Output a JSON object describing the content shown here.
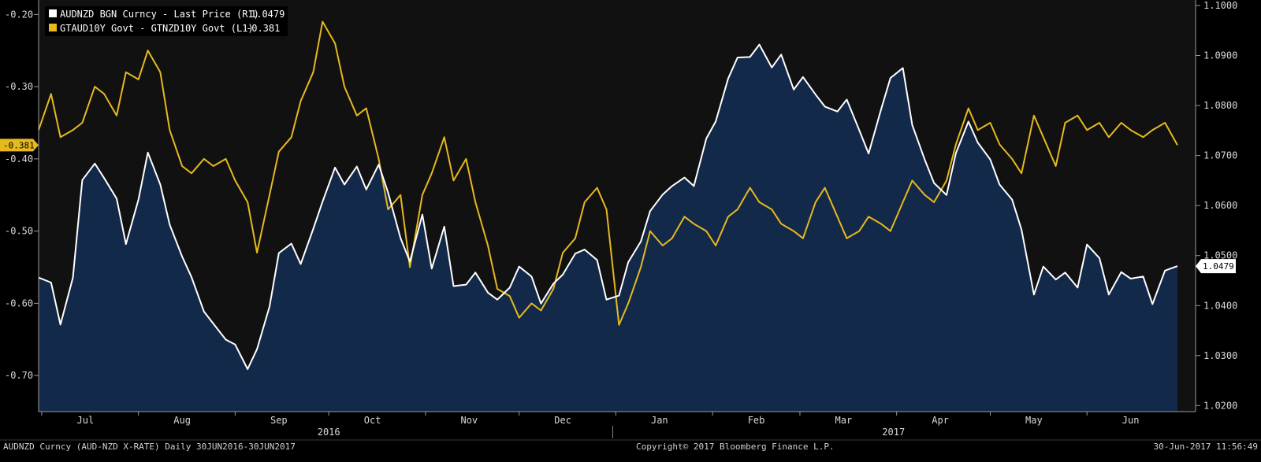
{
  "chart_data": {
    "type": "line",
    "title": "",
    "legend": [
      {
        "name": "AUDNZD BGN Curncy - Last Price (R1)",
        "last": "1.0479",
        "color": "#ffffff"
      },
      {
        "name": "GTAUD10Y Govt - GTNZD10Y Govt (L1)",
        "last": "-0.381",
        "color": "#e6b91e"
      }
    ],
    "left_axis": {
      "ylim": [
        -0.75,
        -0.18
      ],
      "ticks": [
        "-0.20",
        "-0.30",
        "-0.40",
        "-0.50",
        "-0.60",
        "-0.70"
      ],
      "tick_values": [
        -0.2,
        -0.3,
        -0.4,
        -0.5,
        -0.6,
        -0.7
      ]
    },
    "right_axis": {
      "ylim": [
        1.0188,
        1.1011
      ],
      "ticks": [
        "1.1000",
        "1.0900",
        "1.0800",
        "1.0700",
        "1.0600",
        "1.0500",
        "1.0400",
        "1.0300",
        "1.0200"
      ],
      "tick_values": [
        1.1,
        1.09,
        1.08,
        1.07,
        1.06,
        1.05,
        1.04,
        1.03,
        1.02
      ]
    },
    "x_range": [
      "2016-06-30",
      "2017-06-30"
    ],
    "months": [
      {
        "label": "Jul",
        "date": "2016-07-15"
      },
      {
        "label": "Aug",
        "date": "2016-08-15"
      },
      {
        "label": "Sep",
        "date": "2016-09-15"
      },
      {
        "label": "Oct",
        "date": "2016-10-15"
      },
      {
        "label": "Nov",
        "date": "2016-11-15"
      },
      {
        "label": "Dec",
        "date": "2016-12-15"
      },
      {
        "label": "Jan",
        "date": "2017-01-15"
      },
      {
        "label": "Feb",
        "date": "2017-02-15"
      },
      {
        "label": "Mar",
        "date": "2017-03-15"
      },
      {
        "label": "Apr",
        "date": "2017-04-15"
      },
      {
        "label": "May",
        "date": "2017-05-15"
      },
      {
        "label": "Jun",
        "date": "2017-06-15"
      }
    ],
    "years": [
      {
        "label": "2016",
        "date": "2016-10-01"
      },
      {
        "label": "2017",
        "date": "2017-03-31"
      }
    ],
    "year_divider": "2016-12-31",
    "series": [
      {
        "name": "AUDNZD BGN Curncy - Last Price (R1)",
        "axis": "right",
        "color": "#ffffff",
        "fill": "#13294a",
        "x": [
          "2016-06-30",
          "2016-07-04",
          "2016-07-07",
          "2016-07-11",
          "2016-07-14",
          "2016-07-18",
          "2016-07-21",
          "2016-07-25",
          "2016-07-28",
          "2016-08-01",
          "2016-08-04",
          "2016-08-08",
          "2016-08-11",
          "2016-08-15",
          "2016-08-18",
          "2016-08-22",
          "2016-08-25",
          "2016-08-29",
          "2016-09-01",
          "2016-09-05",
          "2016-09-08",
          "2016-09-12",
          "2016-09-15",
          "2016-09-19",
          "2016-09-22",
          "2016-09-26",
          "2016-09-29",
          "2016-10-03",
          "2016-10-06",
          "2016-10-10",
          "2016-10-13",
          "2016-10-17",
          "2016-10-20",
          "2016-10-24",
          "2016-10-27",
          "2016-10-31",
          "2016-11-03",
          "2016-11-07",
          "2016-11-10",
          "2016-11-14",
          "2016-11-17",
          "2016-11-21",
          "2016-11-24",
          "2016-11-28",
          "2016-12-01",
          "2016-12-05",
          "2016-12-08",
          "2016-12-12",
          "2016-12-15",
          "2016-12-19",
          "2016-12-22",
          "2016-12-26",
          "2016-12-29",
          "2017-01-02",
          "2017-01-05",
          "2017-01-09",
          "2017-01-12",
          "2017-01-16",
          "2017-01-19",
          "2017-01-23",
          "2017-01-26",
          "2017-01-30",
          "2017-02-02",
          "2017-02-06",
          "2017-02-09",
          "2017-02-13",
          "2017-02-16",
          "2017-02-20",
          "2017-02-23",
          "2017-02-27",
          "2017-03-02",
          "2017-03-06",
          "2017-03-09",
          "2017-03-13",
          "2017-03-16",
          "2017-03-20",
          "2017-03-23",
          "2017-03-27",
          "2017-03-30",
          "2017-04-03",
          "2017-04-06",
          "2017-04-10",
          "2017-04-13",
          "2017-04-17",
          "2017-04-20",
          "2017-04-24",
          "2017-04-27",
          "2017-05-01",
          "2017-05-04",
          "2017-05-08",
          "2017-05-11",
          "2017-05-15",
          "2017-05-18",
          "2017-05-22",
          "2017-05-25",
          "2017-05-29",
          "2017-06-01",
          "2017-06-05",
          "2017-06-08",
          "2017-06-12",
          "2017-06-15",
          "2017-06-19",
          "2017-06-22",
          "2017-06-26",
          "2017-06-30"
        ],
        "values": [
          1.0456,
          1.0446,
          1.0362,
          1.0456,
          1.0651,
          1.0684,
          1.0655,
          1.0614,
          1.0523,
          1.0612,
          1.0706,
          1.0642,
          1.0562,
          1.0498,
          1.0457,
          1.0388,
          1.0364,
          1.0332,
          1.0322,
          1.0273,
          1.0313,
          1.0398,
          1.0505,
          1.0524,
          1.0483,
          1.0553,
          1.0608,
          1.0676,
          1.0642,
          1.0678,
          1.0632,
          1.0682,
          1.0626,
          1.0535,
          1.0488,
          1.0582,
          1.0474,
          1.0558,
          1.0439,
          1.0442,
          1.0466,
          1.0426,
          1.0412,
          1.0436,
          1.0478,
          1.0458,
          1.0404,
          1.0444,
          1.0462,
          1.0504,
          1.0512,
          1.0491,
          1.0412,
          1.042,
          1.0487,
          1.0528,
          1.0589,
          1.0622,
          1.0639,
          1.0656,
          1.0639,
          1.0734,
          1.0768,
          1.0854,
          1.0896,
          1.0897,
          1.0922,
          1.0876,
          1.0902,
          1.0832,
          1.0857,
          1.0822,
          1.0798,
          1.0788,
          1.0812,
          1.0751,
          1.0704,
          1.0792,
          1.0855,
          1.0875,
          1.0761,
          1.0692,
          1.0645,
          1.0621,
          1.0705,
          1.0768,
          1.0726,
          1.0692,
          1.0642,
          1.0612,
          1.0552,
          1.0422,
          1.0478,
          1.0452,
          1.0466,
          1.0436,
          1.0522,
          1.0495,
          1.0422,
          1.0467,
          1.0454,
          1.0458,
          1.0403,
          1.047,
          1.0479
        ]
      },
      {
        "name": "GTAUD10Y Govt - GTNZD10Y Govt (L1)",
        "axis": "left",
        "color": "#e6b91e",
        "x": [
          "2016-06-30",
          "2016-07-04",
          "2016-07-07",
          "2016-07-11",
          "2016-07-14",
          "2016-07-18",
          "2016-07-21",
          "2016-07-25",
          "2016-07-28",
          "2016-08-01",
          "2016-08-04",
          "2016-08-08",
          "2016-08-11",
          "2016-08-15",
          "2016-08-18",
          "2016-08-22",
          "2016-08-25",
          "2016-08-29",
          "2016-09-01",
          "2016-09-05",
          "2016-09-08",
          "2016-09-12",
          "2016-09-15",
          "2016-09-19",
          "2016-09-22",
          "2016-09-26",
          "2016-09-29",
          "2016-10-03",
          "2016-10-06",
          "2016-10-10",
          "2016-10-13",
          "2016-10-17",
          "2016-10-20",
          "2016-10-24",
          "2016-10-27",
          "2016-10-31",
          "2016-11-03",
          "2016-11-07",
          "2016-11-10",
          "2016-11-14",
          "2016-11-17",
          "2016-11-21",
          "2016-11-24",
          "2016-11-28",
          "2016-12-01",
          "2016-12-05",
          "2016-12-08",
          "2016-12-12",
          "2016-12-15",
          "2016-12-19",
          "2016-12-22",
          "2016-12-26",
          "2016-12-29",
          "2017-01-02",
          "2017-01-05",
          "2017-01-09",
          "2017-01-12",
          "2017-01-16",
          "2017-01-19",
          "2017-01-23",
          "2017-01-26",
          "2017-01-30",
          "2017-02-02",
          "2017-02-06",
          "2017-02-09",
          "2017-02-13",
          "2017-02-16",
          "2017-02-20",
          "2017-02-23",
          "2017-02-27",
          "2017-03-02",
          "2017-03-06",
          "2017-03-09",
          "2017-03-13",
          "2017-03-16",
          "2017-03-20",
          "2017-03-23",
          "2017-03-27",
          "2017-03-30",
          "2017-04-03",
          "2017-04-06",
          "2017-04-10",
          "2017-04-13",
          "2017-04-17",
          "2017-04-20",
          "2017-04-24",
          "2017-04-27",
          "2017-05-01",
          "2017-05-04",
          "2017-05-08",
          "2017-05-11",
          "2017-05-15",
          "2017-05-18",
          "2017-05-22",
          "2017-05-25",
          "2017-05-29",
          "2017-06-01",
          "2017-06-05",
          "2017-06-08",
          "2017-06-12",
          "2017-06-15",
          "2017-06-19",
          "2017-06-22",
          "2017-06-26",
          "2017-06-30"
        ],
        "values": [
          -0.36,
          -0.31,
          -0.37,
          -0.36,
          -0.35,
          -0.3,
          -0.31,
          -0.34,
          -0.28,
          -0.29,
          -0.25,
          -0.28,
          -0.36,
          -0.41,
          -0.42,
          -0.4,
          -0.41,
          -0.4,
          -0.43,
          -0.46,
          -0.53,
          -0.45,
          -0.39,
          -0.37,
          -0.32,
          -0.28,
          -0.21,
          -0.24,
          -0.3,
          -0.34,
          -0.33,
          -0.4,
          -0.47,
          -0.45,
          -0.55,
          -0.45,
          -0.42,
          -0.37,
          -0.43,
          -0.4,
          -0.46,
          -0.52,
          -0.58,
          -0.59,
          -0.62,
          -0.6,
          -0.61,
          -0.58,
          -0.53,
          -0.51,
          -0.46,
          -0.44,
          -0.47,
          -0.63,
          -0.6,
          -0.55,
          -0.5,
          -0.52,
          -0.51,
          -0.48,
          -0.49,
          -0.5,
          -0.52,
          -0.48,
          -0.47,
          -0.44,
          -0.46,
          -0.47,
          -0.49,
          -0.5,
          -0.51,
          -0.46,
          -0.44,
          -0.48,
          -0.51,
          -0.5,
          -0.48,
          -0.49,
          -0.5,
          -0.46,
          -0.43,
          -0.45,
          -0.46,
          -0.43,
          -0.38,
          -0.33,
          -0.36,
          -0.35,
          -0.38,
          -0.4,
          -0.42,
          -0.34,
          -0.37,
          -0.41,
          -0.35,
          -0.34,
          -0.36,
          -0.35,
          -0.37,
          -0.35,
          -0.36,
          -0.37,
          -0.36,
          -0.35,
          -0.381
        ]
      }
    ],
    "grid": false,
    "legend_placement": "top-left"
  },
  "right_tag": {
    "value": "1.0479"
  },
  "left_tag": {
    "value": "-0.381"
  },
  "footer": {
    "left": "AUDNZD Curncy (AUD-NZD X-RATE)  Daily 30JUN2016-30JUN2017",
    "center": "Copyright© 2017 Bloomberg Finance L.P.",
    "right": "30-Jun-2017 11:56:49"
  }
}
